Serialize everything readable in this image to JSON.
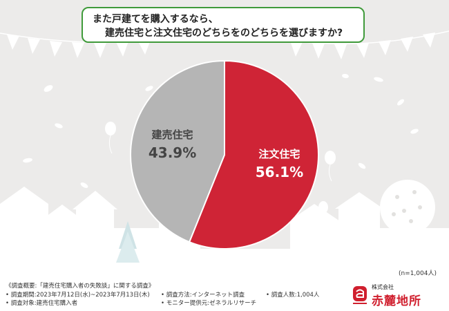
{
  "question": {
    "line1": "また戸建てを購入するなら、",
    "line2": "建売住宅と注文住宅のどちらをのどちらを選びますか?"
  },
  "chart_data": {
    "type": "pie",
    "slices": [
      {
        "label": "注文住宅",
        "value": 56.1,
        "value_text": "56.1%",
        "color": "#cf2436"
      },
      {
        "label": "建売住宅",
        "value": 43.9,
        "value_text": "43.9%",
        "color": "#b5b5b5"
      }
    ],
    "start": "top",
    "direction": "clockwise"
  },
  "sample_size": "(n=1,004人)",
  "survey": {
    "overview": "《調査概要:「建売住宅購入者の失敗談」に関する調査》",
    "period": "• 調査期間:2023年7月12日(水)~2023年7月13日(木)",
    "method": "• 調査方法:インターネット調査",
    "count": "• 調査人数:1,004人",
    "target": "• 調査対象:建売住宅購入者",
    "provider": "• モニター提供元:ゼネラルリサーチ"
  },
  "logo": {
    "corp": "株式会社",
    "name": "赤麓地所"
  },
  "colors": {
    "accent_red": "#cf2436",
    "gray": "#b5b5b5",
    "green_border": "#3f9a3a",
    "background": "#ecebea"
  }
}
